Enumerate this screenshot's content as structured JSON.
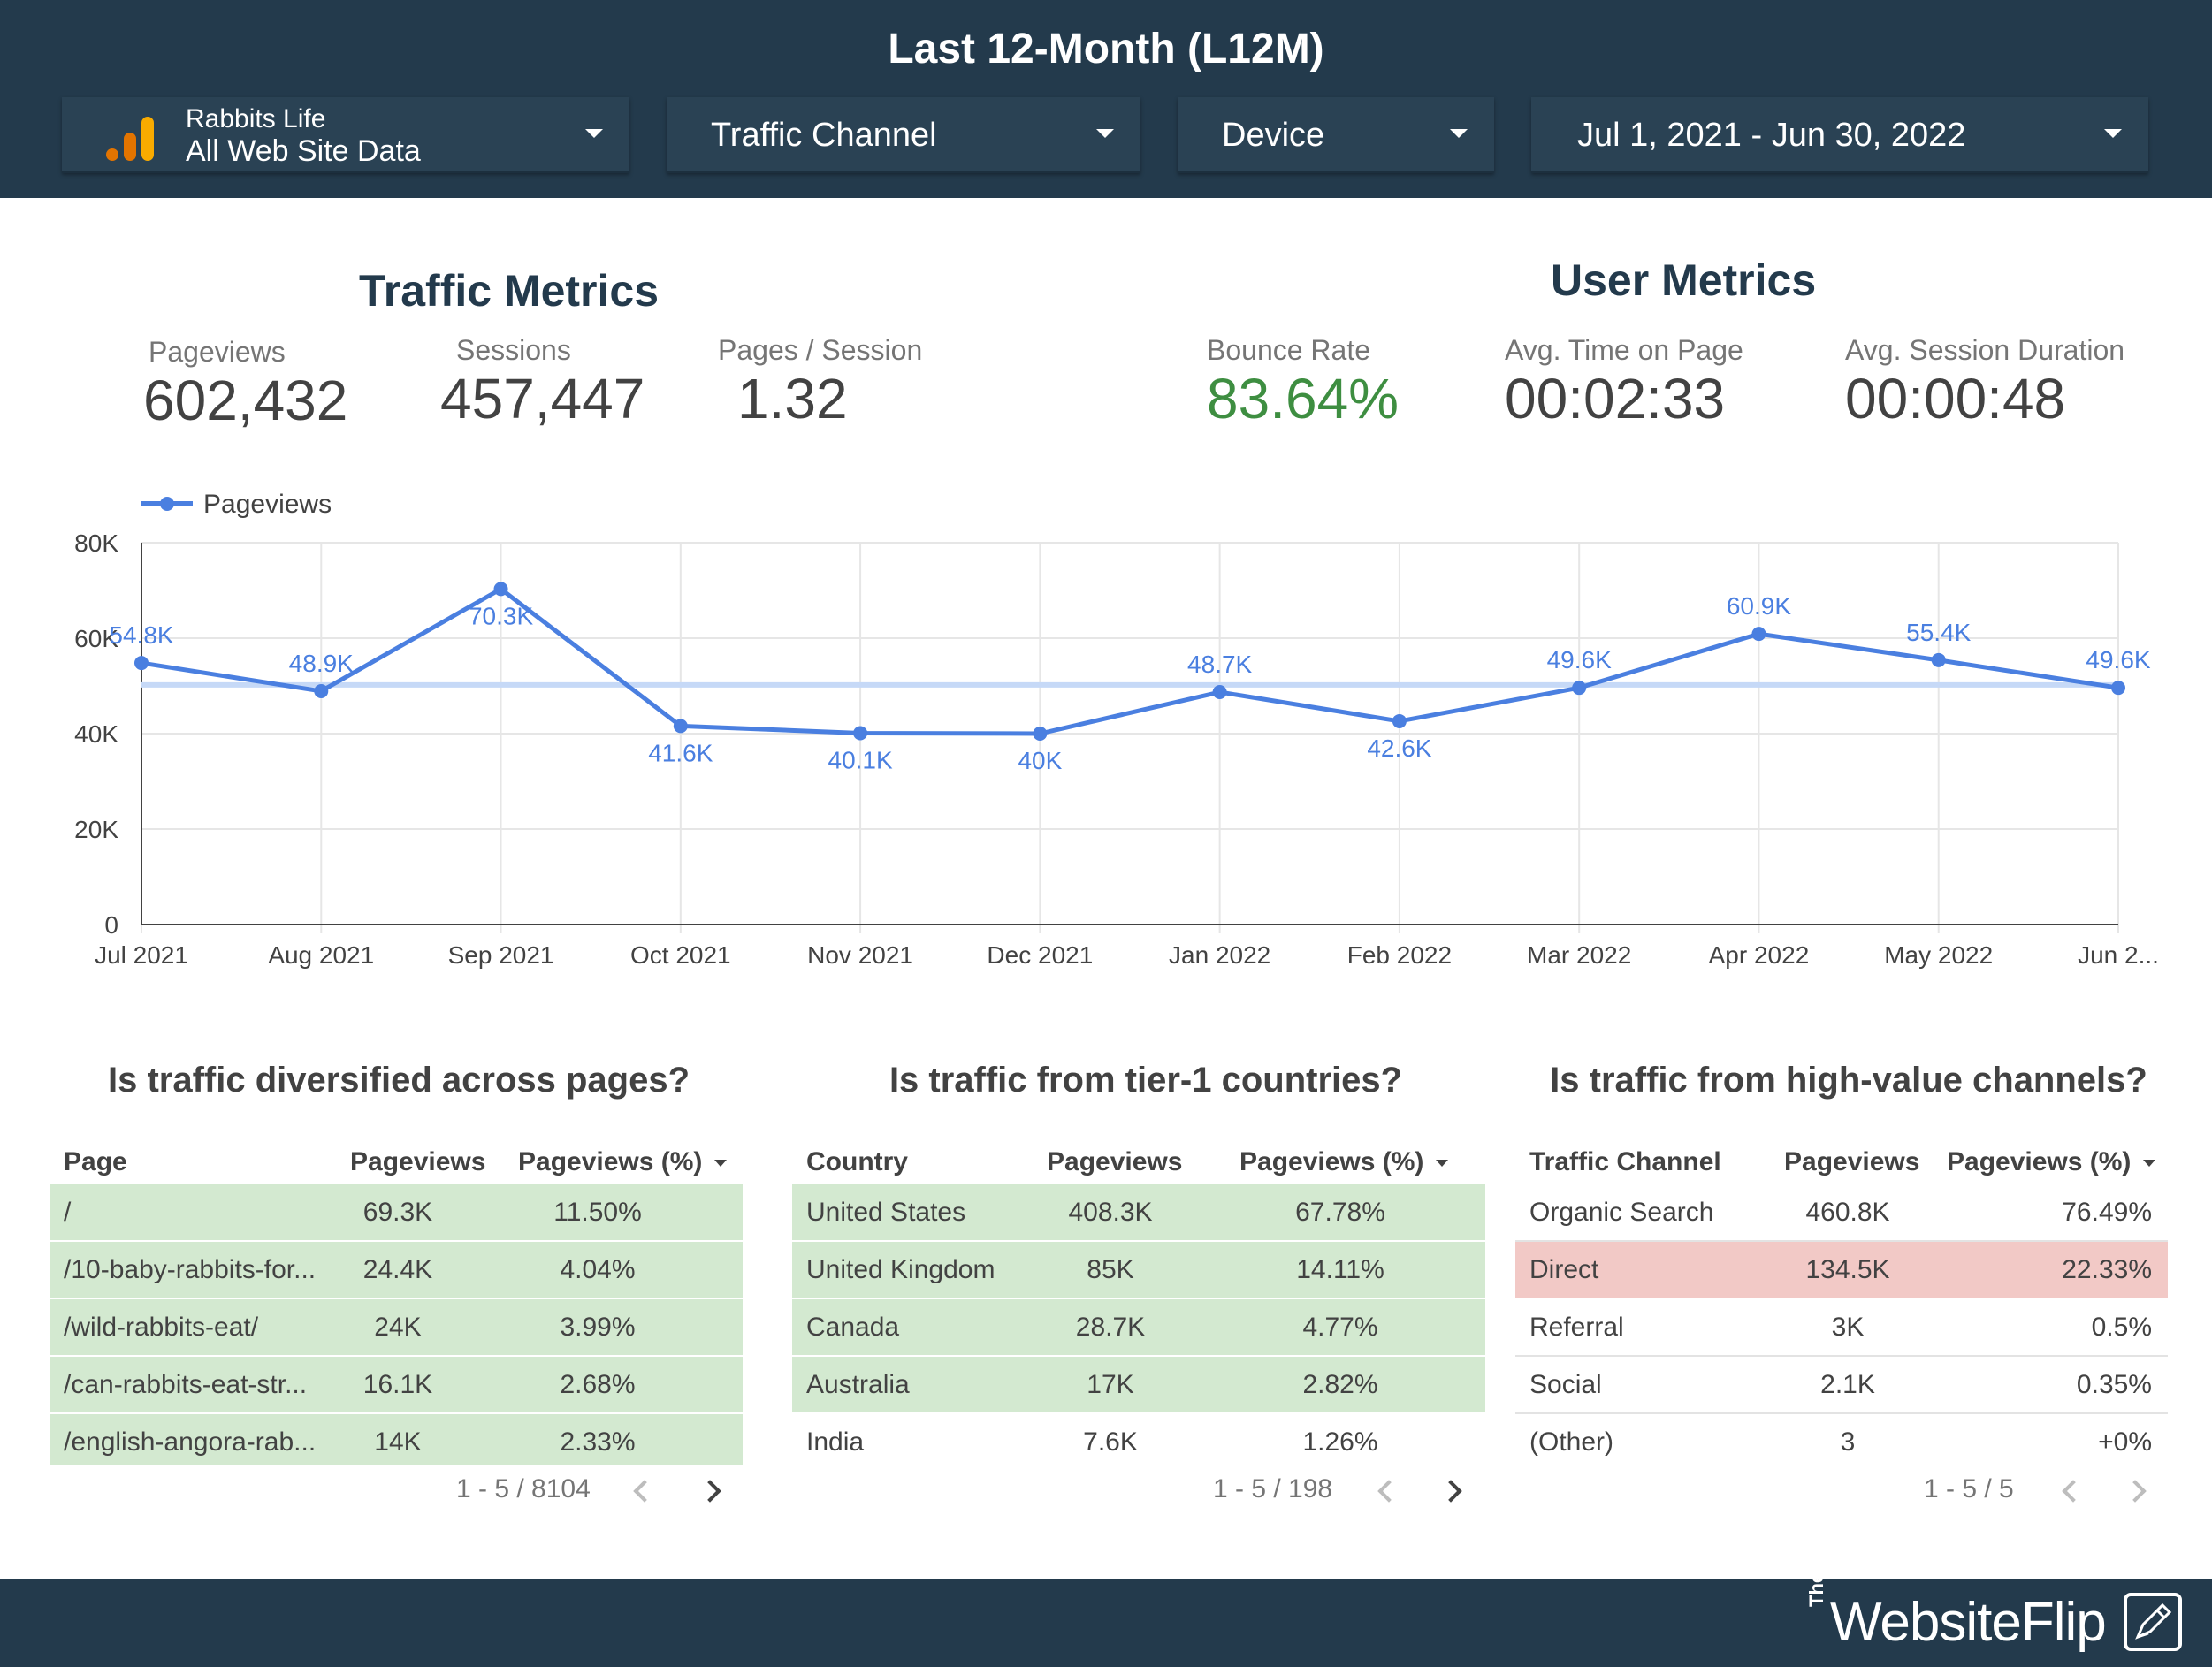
{
  "header": {
    "title": "Last 12-Month (L12M)",
    "source": {
      "line1": "Rabbits Life",
      "line2": "All Web Site Data"
    },
    "filters": [
      "Traffic Channel",
      "Device"
    ],
    "date_range": "Jul 1, 2021 - Jun 30, 2022"
  },
  "traffic_metrics": {
    "title": "Traffic Metrics",
    "items": [
      {
        "label": "Pageviews",
        "value": "602,432"
      },
      {
        "label": "Sessions",
        "value": "457,447"
      },
      {
        "label": "Pages / Session",
        "value": "1.32"
      }
    ]
  },
  "user_metrics": {
    "title": "User Metrics",
    "items": [
      {
        "label": "Bounce Rate",
        "value": "83.64%"
      },
      {
        "label": "Avg. Time on Page",
        "value": "00:02:33"
      },
      {
        "label": "Avg. Session Duration",
        "value": "00:00:48"
      }
    ]
  },
  "chart_data": {
    "type": "line",
    "legend": "Pageviews",
    "legend_position": "top-left",
    "grid": true,
    "ylim": [
      0,
      80000
    ],
    "yticks": [
      "0",
      "20K",
      "40K",
      "60K",
      "80K"
    ],
    "ytick_values": [
      0,
      20000,
      40000,
      60000,
      80000
    ],
    "categories": [
      "Jul 2021",
      "Aug 2021",
      "Sep 2021",
      "Oct 2021",
      "Nov 2021",
      "Dec 2021",
      "Jan 2022",
      "Feb 2022",
      "Mar 2022",
      "Apr 2022",
      "May 2022",
      "Jun 2..."
    ],
    "series": [
      {
        "name": "Pageviews",
        "color": "#4a7fe0",
        "values": [
          54800,
          48900,
          70300,
          41600,
          40100,
          40000,
          48700,
          42600,
          49600,
          60900,
          55400,
          49600
        ],
        "labels": [
          "54.8K",
          "48.9K",
          "70.3K",
          "41.6K",
          "40.1K",
          "40K",
          "48.7K",
          "42.6K",
          "49.6K",
          "60.9K",
          "55.4K",
          "49.6K"
        ]
      }
    ],
    "reference_line": {
      "value": 50200,
      "color": "#c6d9f7"
    }
  },
  "pages_table": {
    "title": "Is traffic diversified across pages?",
    "columns": [
      "Page",
      "Pageviews",
      "Pageviews (%)"
    ],
    "rows": [
      [
        "/",
        "69.3K",
        "11.50%"
      ],
      [
        "/10-baby-rabbits-for...",
        "24.4K",
        "4.04%"
      ],
      [
        "/wild-rabbits-eat/",
        "24K",
        "3.99%"
      ],
      [
        "/can-rabbits-eat-str...",
        "16.1K",
        "2.68%"
      ],
      [
        "/english-angora-rab...",
        "14K",
        "2.33%"
      ]
    ],
    "pager": "1 - 5 / 8104"
  },
  "countries_table": {
    "title": "Is traffic from tier-1 countries?",
    "columns": [
      "Country",
      "Pageviews",
      "Pageviews (%)"
    ],
    "rows": [
      [
        "United States",
        "408.3K",
        "67.78%"
      ],
      [
        "United Kingdom",
        "85K",
        "14.11%"
      ],
      [
        "Canada",
        "28.7K",
        "4.77%"
      ],
      [
        "Australia",
        "17K",
        "2.82%"
      ],
      [
        "India",
        "7.6K",
        "1.26%"
      ]
    ],
    "pager": "1 - 5 / 198"
  },
  "channels_table": {
    "title": "Is traffic from high-value channels?",
    "columns": [
      "Traffic Channel",
      "Pageviews",
      "Pageviews (%)"
    ],
    "rows": [
      [
        "Organic Search",
        "460.8K",
        "76.49%"
      ],
      [
        "Direct",
        "134.5K",
        "22.33%"
      ],
      [
        "Referral",
        "3K",
        "0.5%"
      ],
      [
        "Social",
        "2.1K",
        "0.35%"
      ],
      [
        "(Other)",
        "3",
        "+0%"
      ]
    ],
    "pager": "1 - 5 / 5"
  },
  "footer": {
    "brand_prefix": "The",
    "brand": "WebsiteFlip"
  },
  "colors": {
    "header_bg": "#233a4c",
    "highlight_green": "#d3e9d0",
    "highlight_red": "#f2c9c6",
    "bounce_green": "#3e8e41"
  }
}
